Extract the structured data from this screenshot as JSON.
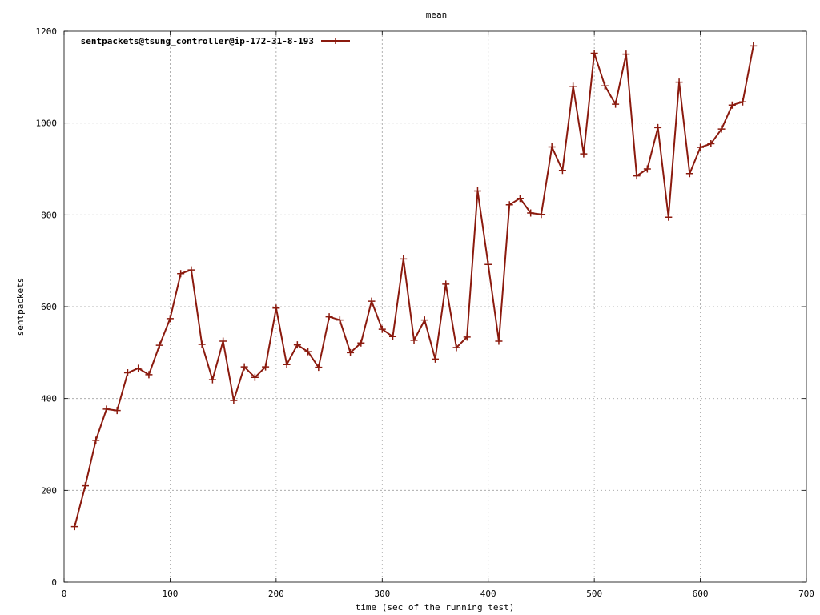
{
  "chart_data": {
    "type": "line",
    "title": "mean",
    "xlabel": "time (sec of the running test)",
    "ylabel": "sentpackets",
    "xlim": [
      0,
      700
    ],
    "ylim": [
      0,
      1200
    ],
    "xticks": [
      "0",
      "100",
      "200",
      "300",
      "400",
      "500",
      "600",
      "700"
    ],
    "yticks": [
      "0",
      "200",
      "400",
      "600",
      "800",
      "1000",
      "1200"
    ],
    "grid": true,
    "legend_position": "top-left",
    "series": [
      {
        "name": "sentpackets@tsung_controller@ip-172-31-8-193",
        "color": "#8b1a0e",
        "x": [
          10,
          20,
          30,
          40,
          50,
          60,
          70,
          80,
          90,
          100,
          110,
          120,
          130,
          140,
          150,
          160,
          170,
          180,
          190,
          200,
          210,
          220,
          230,
          240,
          250,
          260,
          270,
          280,
          290,
          300,
          310,
          320,
          330,
          340,
          350,
          360,
          370,
          380,
          390,
          400,
          410,
          420,
          430,
          440,
          450,
          460,
          470,
          480,
          490,
          500,
          510,
          520,
          530,
          540,
          550,
          560,
          570,
          580,
          590,
          600,
          610,
          620,
          630,
          640,
          650
        ],
        "y": [
          121,
          210,
          309,
          377,
          374,
          456,
          466,
          452,
          516,
          574,
          672,
          680,
          518,
          441,
          525,
          396,
          469,
          446,
          469,
          597,
          474,
          517,
          502,
          468,
          578,
          571,
          500,
          521,
          612,
          551,
          535,
          704,
          527,
          571,
          486,
          649,
          511,
          534,
          852,
          692,
          525,
          822,
          836,
          804,
          801,
          948,
          897,
          1080,
          933,
          1152,
          1081,
          1041,
          1150,
          885,
          900,
          990,
          795,
          1089,
          890,
          947,
          955,
          987,
          1039,
          1046,
          1168
        ]
      }
    ]
  }
}
